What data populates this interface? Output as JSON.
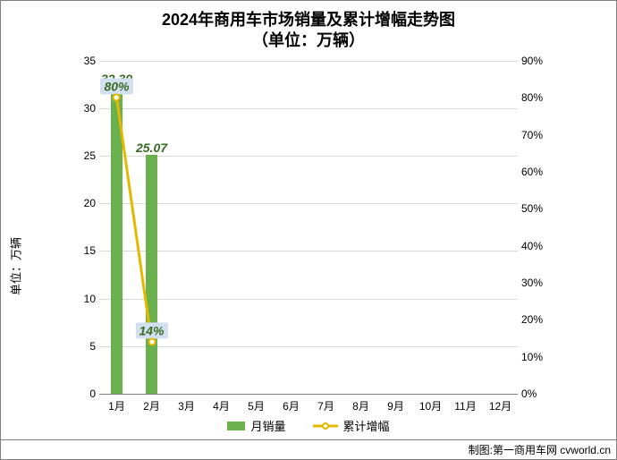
{
  "title_line1": "2024年商用车市场销量及累计增幅走势图",
  "title_line2": "（单位：万辆）",
  "title_fontsize": 18,
  "y_axis_label": "单位：万辆",
  "axis_label_fontsize": 13,
  "tick_fontsize": 12,
  "categories": [
    "1月",
    "2月",
    "3月",
    "4月",
    "5月",
    "6月",
    "7月",
    "8月",
    "9月",
    "10月",
    "11月",
    "12月"
  ],
  "bars": {
    "name": "月销量",
    "color": "#6ab04c",
    "values": [
      32.39,
      25.07,
      null,
      null,
      null,
      null,
      null,
      null,
      null,
      null,
      null,
      null
    ],
    "label_color": "#3a6b23",
    "label_fontsize": 14,
    "bar_width_ratio": 0.32
  },
  "line": {
    "name": "累计增幅",
    "color": "#e6b800",
    "marker_fill": "#ffffff",
    "marker_border": "#e6b800",
    "marker_size": 9,
    "line_width": 3,
    "values_pct": [
      80,
      14,
      null,
      null,
      null,
      null,
      null,
      null,
      null,
      null,
      null,
      null
    ],
    "label_bg": "#d3e0ef",
    "label_color": "#3a6b23",
    "label_fontsize": 14
  },
  "y_left": {
    "min": 0,
    "max": 35,
    "step": 5
  },
  "y_right": {
    "min": 0,
    "max": 90,
    "step": 10,
    "suffix": "%"
  },
  "grid_color": "#d9d9d9",
  "baseline_color": "#808080",
  "background_color": "#ffffff",
  "legend": {
    "bar_label": "月销量",
    "line_label": "累计增幅",
    "fontsize": 13
  },
  "credit": "制图:第一商用车网 cvworld.cn"
}
